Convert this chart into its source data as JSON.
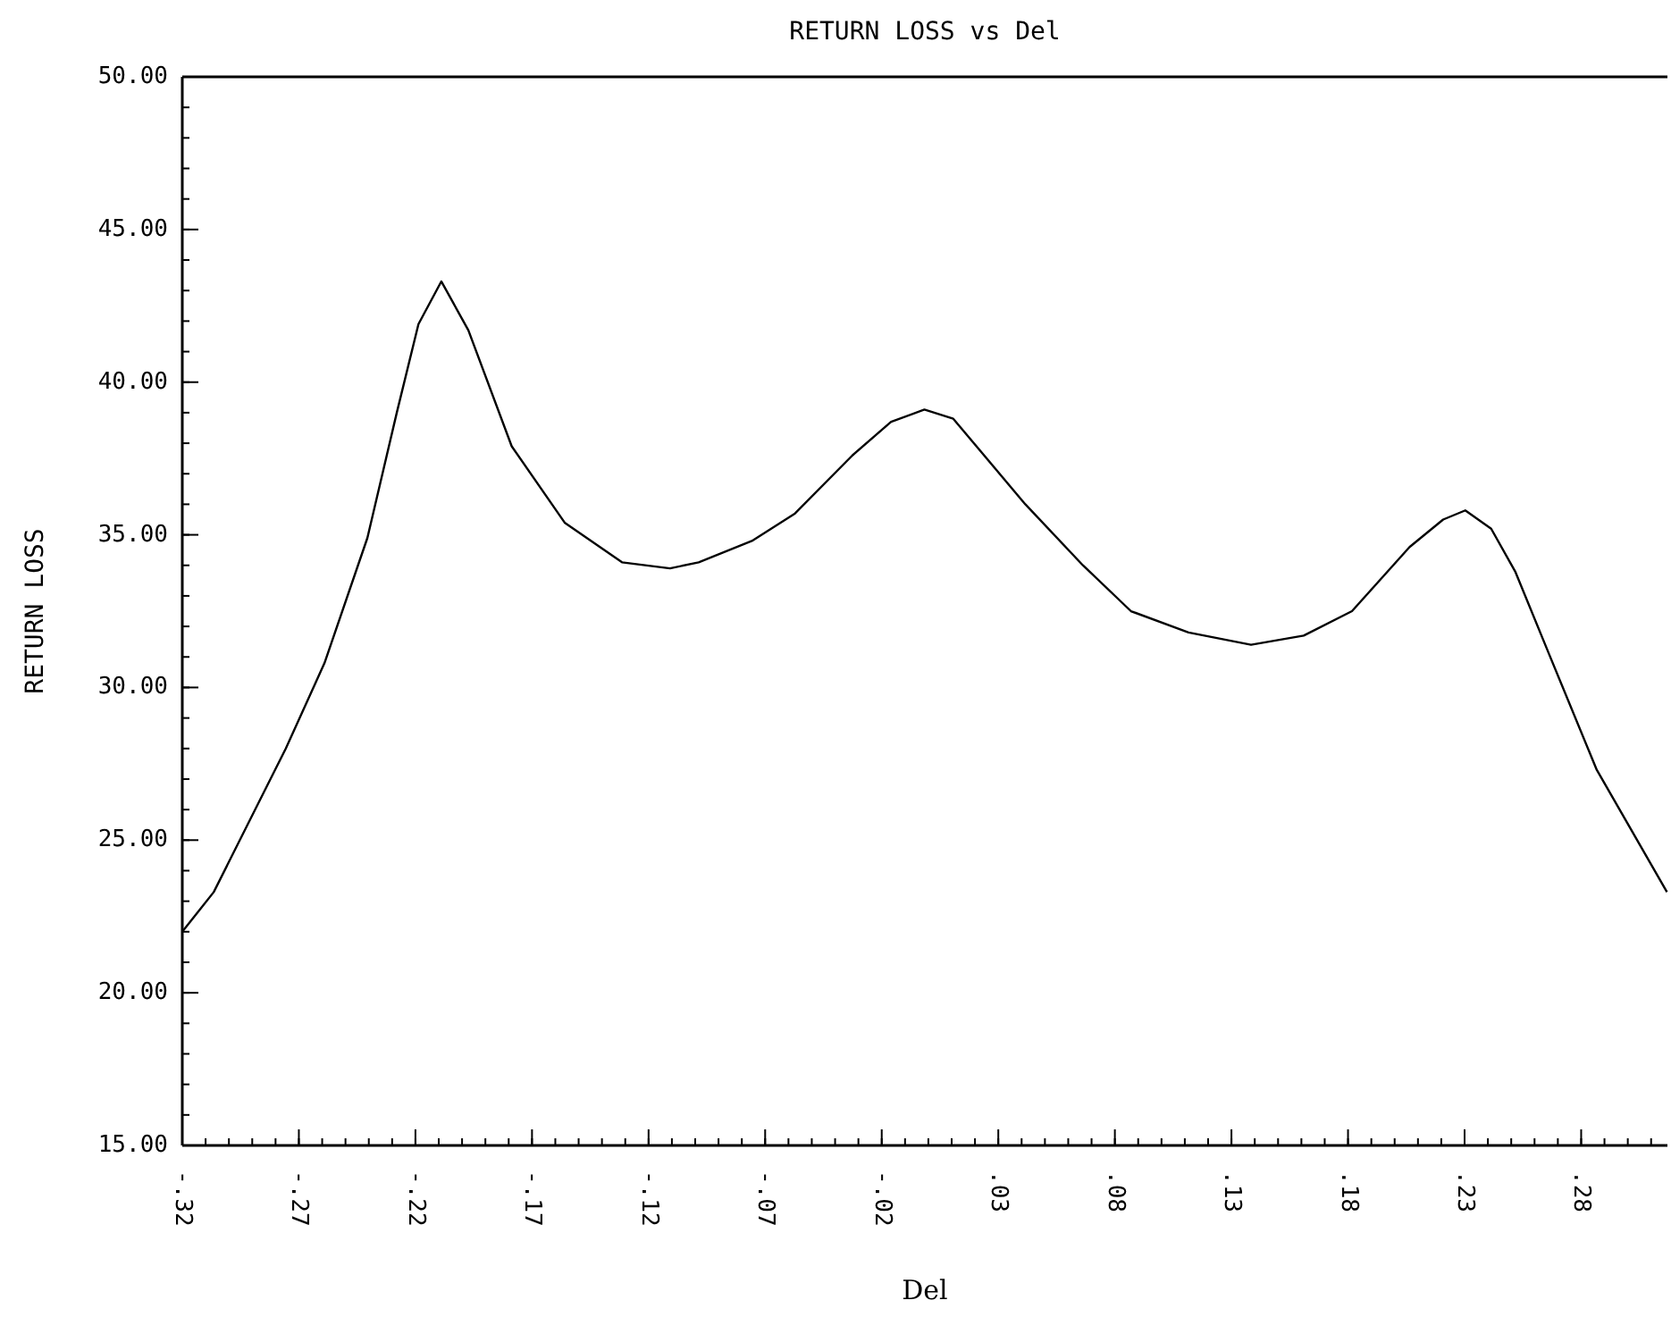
{
  "chart_data": {
    "type": "line",
    "title": "RETURN LOSS vs Del",
    "xlabel": "Del",
    "ylabel": "RETURN LOSS",
    "x": [
      -0.32,
      -0.3065,
      -0.2756,
      -0.259,
      -0.2406,
      -0.228,
      -0.2187,
      -0.2089,
      -0.1973,
      -0.1787,
      -0.156,
      -0.1314,
      -0.1108,
      -0.0985,
      -0.0757,
      -0.0572,
      -0.0326,
      -0.016,
      -0.0017,
      0.0107,
      0.0416,
      0.0663,
      0.0869,
      0.1116,
      0.1384,
      0.161,
      0.1817,
      0.2064,
      0.2208,
      0.2303,
      0.2414,
      0.2517,
      0.2662,
      0.2867,
      0.3168
    ],
    "series": [
      {
        "color": "#000000",
        "values": [
          22.0,
          23.3,
          28.0,
          30.8,
          34.9,
          39.0,
          41.9,
          43.3,
          41.7,
          37.9,
          35.4,
          34.1,
          33.9,
          34.1,
          34.8,
          35.7,
          37.6,
          38.7,
          39.1,
          38.8,
          36.0,
          34.0,
          32.5,
          31.8,
          31.4,
          31.7,
          32.5,
          34.6,
          35.5,
          35.8,
          35.2,
          33.8,
          31.1,
          27.3,
          23.3
        ]
      }
    ],
    "xlim": [
      -0.32,
      0.317
    ],
    "ylim": [
      15,
      50
    ],
    "xticks": [
      {
        "value": -0.32,
        "label": "-.32"
      },
      {
        "value": -0.27,
        "label": "-.27"
      },
      {
        "value": -0.22,
        "label": "-.22"
      },
      {
        "value": -0.17,
        "label": "-.17"
      },
      {
        "value": -0.12,
        "label": "-.12"
      },
      {
        "value": -0.07,
        "label": "-.07"
      },
      {
        "value": -0.02,
        "label": "-.02"
      },
      {
        "value": 0.03,
        "label": ".03"
      },
      {
        "value": 0.08,
        "label": ".08"
      },
      {
        "value": 0.13,
        "label": ".13"
      },
      {
        "value": 0.18,
        "label": ".18"
      },
      {
        "value": 0.23,
        "label": ".23"
      },
      {
        "value": 0.28,
        "label": ".28"
      }
    ],
    "yticks": [
      {
        "value": 15,
        "label": "15.00"
      },
      {
        "value": 20,
        "label": "20.00"
      },
      {
        "value": 25,
        "label": "25.00"
      },
      {
        "value": 30,
        "label": "30.00"
      },
      {
        "value": 35,
        "label": "35.00"
      },
      {
        "value": 40,
        "label": "40.00"
      },
      {
        "value": 45,
        "label": "45.00"
      },
      {
        "value": 50,
        "label": "50.00"
      }
    ],
    "grid": false,
    "marker": "none",
    "line_style": "solid"
  }
}
